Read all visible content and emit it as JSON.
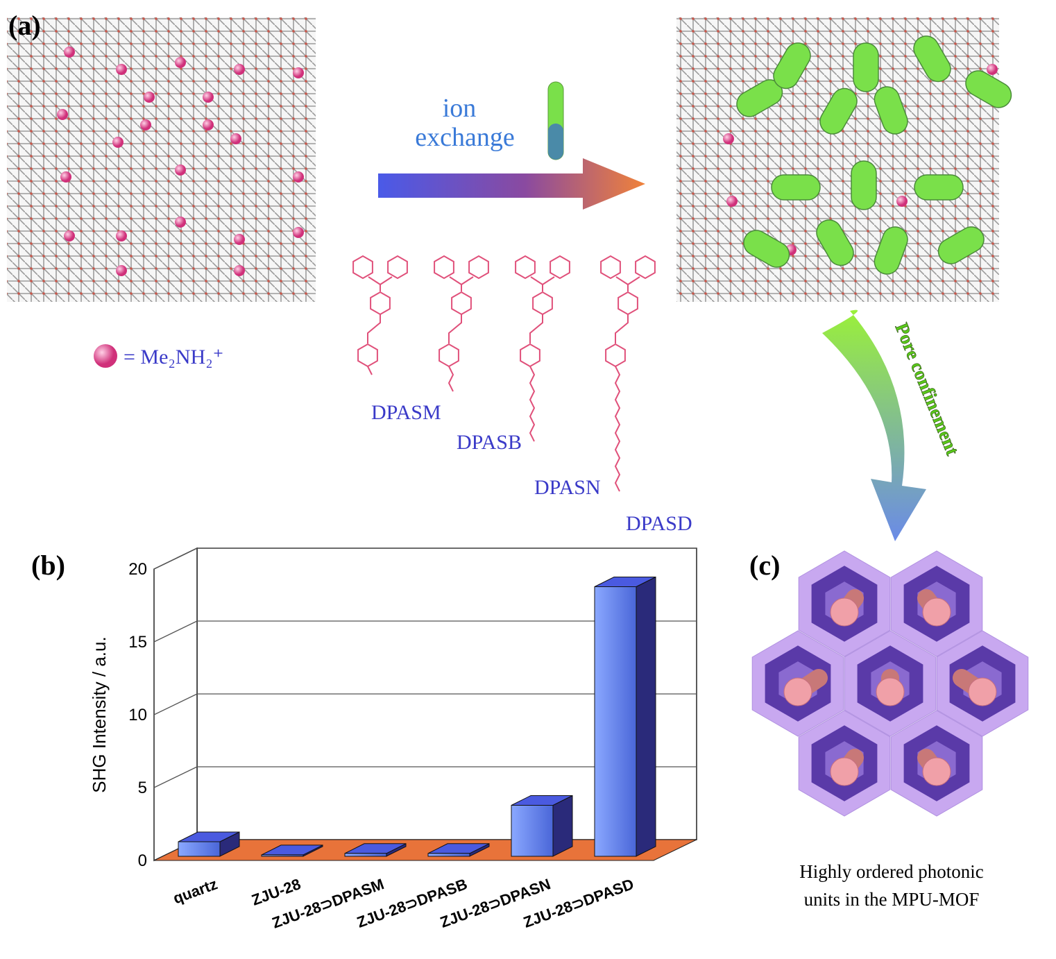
{
  "panel_a": {
    "label": "(a)",
    "arrow_text": [
      "ion",
      "exchange"
    ],
    "legend_text": "= Me₂NH₂⁺",
    "molecules": [
      "DPASM",
      "DPASB",
      "DPASN",
      "DPASD"
    ]
  },
  "panel_b": {
    "label": "(b)"
  },
  "chart_data": {
    "type": "bar3d",
    "y_label": "SHG Intensity / a.u.",
    "categories": [
      "quartz",
      "ZJU-28",
      "ZJU-28⊃DPASM",
      "ZJU-28⊃DPASB",
      "ZJU-28⊃DPASN",
      "ZJU-28⊃DPASD"
    ],
    "values": [
      1.0,
      0.1,
      0.2,
      0.2,
      3.5,
      18.5
    ],
    "color": "#5b7be8",
    "floor_color": "#e8733a",
    "ylim": [
      0,
      20
    ],
    "yticks": [
      0,
      5,
      10,
      15,
      20
    ],
    "grid": true
  },
  "panel_c": {
    "label": "(c)",
    "arrow_text": "Pore confinement",
    "caption": [
      "Highly ordered photonic",
      "units in the MPU-MOF"
    ]
  }
}
